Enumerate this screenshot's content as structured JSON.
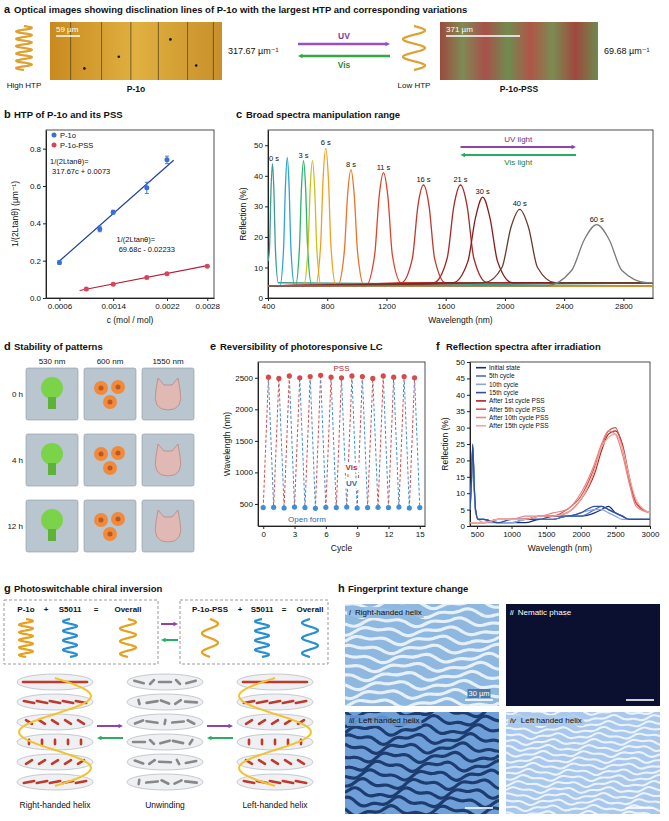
{
  "chart_data": [
    {
      "type": "scatter",
      "letter": "b",
      "title": "HTP of P-1o and its PSS",
      "x_label": "c (mol / mol)",
      "y_label": "1/(2Ltanθ) (µm⁻¹)",
      "xlim": [
        0.0004,
        0.0029
      ],
      "xticks": [
        0.0006,
        0.0014,
        0.0022,
        0.0028
      ],
      "ylim": [
        0,
        0.9
      ],
      "yticks": [
        {
          "value": 0,
          "label": "0.0"
        },
        0.2,
        0.4,
        0.6,
        0.8
      ],
      "legend": "upper left",
      "series": [
        {
          "name": "P-1o",
          "color": "#3a6fd8",
          "marker": "circle",
          "x": [
            0.0006,
            0.0012,
            0.0014,
            0.0019,
            0.0022
          ],
          "values": [
            0.19,
            0.37,
            0.46,
            0.59,
            0.74
          ],
          "errors": [
            0.01,
            0.015,
            0.01,
            0.03,
            0.02
          ]
        },
        {
          "name": "P-1o-PSS",
          "color": "#d8455a",
          "marker": "circle",
          "x": [
            0.001,
            0.0014,
            0.0019,
            0.0022,
            0.0028
          ],
          "values": [
            0.048,
            0.074,
            0.11,
            0.13,
            0.17
          ],
          "errors": [
            0.005,
            0.005,
            0.006,
            0.005,
            0.006
          ]
        }
      ],
      "fits": [
        {
          "label": "1/(2Ltanθ)= 317.67c + 0.0073",
          "color": "#1f3f9f",
          "x": [
            0.0006,
            0.0023
          ],
          "values": [
            0.198,
            0.738
          ]
        },
        {
          "label": "1/(2Ltanθ)= 69.68c - 0.02233",
          "color": "#b0223a",
          "x": [
            0.0009,
            0.0028
          ],
          "values": [
            0.04,
            0.173
          ]
        }
      ]
    },
    {
      "type": "line",
      "letter": "c",
      "title": "Broad spectra manipulation range",
      "x_label": "Wavelength (nm)",
      "y_label": "Reflection (%)",
      "xlim": [
        400,
        3000
      ],
      "xticks": [
        400,
        800,
        1200,
        1600,
        2000,
        2400,
        2800
      ],
      "ylim": [
        0,
        55
      ],
      "yticks": [
        0,
        10,
        20,
        30,
        40,
        50
      ],
      "annotations": [
        "UV light",
        "Vis light"
      ],
      "series": [
        {
          "name": "0 s",
          "color": "#3a9e8f",
          "x": [
            400,
            410,
            420,
            430,
            440,
            450,
            470,
            3000
          ],
          "values": [
            12,
            16,
            35,
            44,
            35,
            16,
            5,
            4
          ]
        },
        {
          "name": null,
          "color": "#2fa4d4",
          "x": [
            400,
            480,
            505,
            518,
            530,
            542,
            555,
            580,
            3000
          ],
          "values": [
            4,
            4,
            16,
            37,
            46,
            37,
            16,
            4,
            4
          ]
        },
        {
          "name": "3 s",
          "color": "#2db36b",
          "x": [
            400,
            585,
            612,
            626,
            640,
            654,
            668,
            696,
            3000
          ],
          "values": [
            4,
            4,
            16,
            36,
            45,
            36,
            16,
            4,
            4
          ]
        },
        {
          "name": null,
          "color": "#c9c21a",
          "x": [
            400,
            640,
            670,
            685,
            700,
            715,
            730,
            760,
            3000
          ],
          "values": [
            4,
            4,
            16,
            36,
            45,
            36,
            16,
            4,
            4
          ]
        },
        {
          "name": "6 s",
          "color": "#f0a020",
          "x": [
            400,
            720,
            755,
            772,
            790,
            808,
            825,
            860,
            3000
          ],
          "values": [
            4,
            4,
            17,
            39,
            49,
            39,
            17,
            4,
            4
          ]
        },
        {
          "name": "8 s",
          "color": "#e8742a",
          "x": [
            400,
            870,
            915,
            938,
            960,
            982,
            1005,
            1050,
            3000
          ],
          "values": [
            4,
            4,
            15,
            34,
            42,
            34,
            15,
            4,
            4
          ]
        },
        {
          "name": "11 s",
          "color": "#d9452b",
          "x": [
            400,
            1060,
            1120,
            1150,
            1180,
            1210,
            1240,
            1300,
            3000
          ],
          "values": [
            4,
            4,
            14,
            33,
            41,
            33,
            14,
            5,
            5
          ]
        },
        {
          "name": "16 s",
          "color": "#c0392b",
          "x": [
            400,
            1300,
            1375,
            1412,
            1450,
            1488,
            1525,
            1600,
            3000
          ],
          "values": [
            4,
            5,
            13,
            30,
            37,
            30,
            13,
            5,
            5
          ]
        },
        {
          "name": "21 s",
          "color": "#a52a2a",
          "x": [
            400,
            1520,
            1610,
            1655,
            1700,
            1745,
            1790,
            1880,
            3000
          ],
          "values": [
            4,
            5,
            13,
            30,
            37,
            30,
            13,
            5,
            5
          ]
        },
        {
          "name": "30 s",
          "color": "#8b1a1a",
          "x": [
            400,
            1650,
            1750,
            1800,
            1850,
            1900,
            1950,
            2050,
            3000
          ],
          "values": [
            4,
            5,
            12,
            26,
            33,
            26,
            12,
            5,
            5
          ]
        },
        {
          "name": "40 s",
          "color": "#6b3a2a",
          "x": [
            400,
            1860,
            1980,
            2040,
            2100,
            2160,
            2220,
            2340,
            3000
          ],
          "values": [
            4,
            5,
            10,
            23,
            29,
            23,
            10,
            5,
            5
          ]
        },
        {
          "name": "60 s",
          "color": "#7a7a7a",
          "x": [
            400,
            2280,
            2450,
            2535,
            2620,
            2705,
            2790,
            2960,
            3000
          ],
          "values": [
            4,
            4,
            9,
            19,
            24,
            19,
            9,
            5,
            5
          ]
        }
      ]
    },
    {
      "type": "line",
      "letter": "e",
      "title": "Reversibility of photoresponsive LC",
      "x_label": "Cycle",
      "y_label": "Wavelength (nm)",
      "xlim": [
        -0.5,
        15.5
      ],
      "xticks": [
        0,
        3,
        6,
        9,
        12,
        15
      ],
      "ylim": [
        150,
        2750
      ],
      "yticks": [
        500,
        1000,
        1500,
        2000,
        2500
      ],
      "annotations": [
        "UV",
        "Vis"
      ],
      "series": [
        {
          "name": "Open form",
          "color": "#3d8fd6",
          "marker": "circle",
          "line_style": "dashed",
          "x": [
            0,
            1,
            2,
            3,
            4,
            5,
            6,
            7,
            8,
            9,
            10,
            11,
            12,
            13,
            14,
            15
          ],
          "values": [
            440,
            445,
            435,
            450,
            440,
            430,
            445,
            440,
            450,
            435,
            440,
            445,
            440,
            450,
            435,
            440
          ]
        },
        {
          "name": "PSS",
          "color": "#d84a4a",
          "marker": "circle",
          "line_style": "dashed",
          "x": [
            0.5,
            1.5,
            2.5,
            3.5,
            4.5,
            5.5,
            6.5,
            7.5,
            8.5,
            9.5,
            10.5,
            11.5,
            12.5,
            13.5,
            14.5
          ],
          "values": [
            2510,
            2490,
            2530,
            2500,
            2520,
            2540,
            2510,
            2500,
            2530,
            2520,
            2490,
            2530,
            2510,
            2520,
            2500
          ]
        }
      ]
    },
    {
      "type": "line",
      "letter": "f",
      "title": "Reflection spectra after irradiation",
      "x_label": "Wavelength (nm)",
      "y_label": "Reflection (%)",
      "xlim": [
        400,
        3000
      ],
      "xticks": [
        500,
        1000,
        1500,
        2000,
        2500,
        3000
      ],
      "ylim": [
        0,
        50
      ],
      "yticks": [
        0,
        5,
        10,
        15,
        20,
        25,
        30,
        35,
        40,
        45,
        50
      ],
      "legend": "upper left",
      "x": [
        400,
        420,
        440,
        460,
        480,
        520,
        600,
        800,
        1000,
        1200,
        1400,
        1600,
        1800,
        2000,
        2200,
        2300,
        2400,
        2500,
        2600,
        2700,
        2800,
        3000
      ],
      "series": [
        {
          "name": "Initial state",
          "color": "#1a2f7a",
          "values": [
            6,
            14,
            25,
            13,
            5,
            2,
            2,
            1,
            1,
            1,
            2,
            2,
            3,
            3,
            4,
            5,
            6,
            4,
            3,
            2,
            2,
            2
          ]
        },
        {
          "name": "5th cycle",
          "color": "#4a6fc7",
          "values": [
            5,
            13,
            24,
            12,
            5,
            2,
            2,
            1,
            1,
            2,
            2,
            2,
            3,
            3,
            5,
            6,
            5,
            4,
            3,
            2,
            2,
            2
          ]
        },
        {
          "name": "10th cycle",
          "color": "#8aa6d9",
          "values": [
            5,
            12,
            23,
            12,
            4,
            2,
            1,
            1,
            1,
            2,
            2,
            3,
            3,
            4,
            5,
            5,
            4,
            3,
            2,
            2,
            2,
            2
          ]
        },
        {
          "name": "15th cycle",
          "color": "#2e4fa8",
          "values": [
            5,
            13,
            24,
            13,
            5,
            2,
            2,
            1,
            2,
            2,
            2,
            3,
            3,
            4,
            6,
            6,
            5,
            4,
            3,
            2,
            2,
            2
          ]
        },
        {
          "name": "After 1st cycle PSS",
          "color": "#b22222",
          "values": [
            1,
            1,
            1,
            1,
            1,
            1,
            1,
            2,
            2,
            2,
            3,
            3,
            4,
            8,
            16,
            23,
            28,
            29,
            25,
            15,
            7,
            4
          ]
        },
        {
          "name": "After 5th cycle PSS",
          "color": "#d9534f",
          "values": [
            1,
            1,
            1,
            1,
            1,
            1,
            1,
            2,
            2,
            2,
            3,
            3,
            5,
            9,
            18,
            24,
            29,
            30,
            24,
            14,
            7,
            4
          ]
        },
        {
          "name": "After 10th cycle PSS",
          "color": "#e8837f",
          "values": [
            1,
            1,
            1,
            1,
            1,
            1,
            1,
            2,
            2,
            3,
            3,
            4,
            5,
            10,
            19,
            25,
            29,
            28,
            22,
            13,
            6,
            4
          ]
        },
        {
          "name": "After 15th cycle PSS",
          "color": "#f0a8a0",
          "values": [
            1,
            1,
            1,
            1,
            1,
            1,
            1,
            2,
            2,
            2,
            3,
            3,
            4,
            8,
            17,
            24,
            27,
            28,
            24,
            15,
            8,
            4
          ]
        }
      ]
    }
  ],
  "panel_a": {
    "letter": "a",
    "title": "Optical images showing disclination lines of P-1o with the largest HTP and corresponding variations",
    "left": {
      "helix": "High HTP",
      "image": "P-1o",
      "scale_bar": "59 µm",
      "htp": "317.67 µm⁻¹"
    },
    "right": {
      "helix": "Low HTP",
      "image": "P-1o-PSS",
      "scale_bar": "371 µm",
      "htp": "69.68 µm⁻¹"
    },
    "arrows": [
      "UV",
      "Vis"
    ]
  },
  "panel_d": {
    "letter": "d",
    "title": "Stability of patterns",
    "columns": [
      "530 nm",
      "600 nm",
      "1550 nm"
    ],
    "rows": [
      "0 h",
      "4 h",
      "12 h"
    ]
  },
  "panel_g": {
    "letter": "g",
    "title": "Photoswitchable chiral inversion",
    "left_equation": [
      "P-1o",
      "+",
      "S5011",
      "=",
      "Overall"
    ],
    "right_equation": [
      "P-1o-PSS",
      "+",
      "S5011",
      "=",
      "Overall"
    ],
    "states": [
      "Right-handed helix",
      "Unwinding",
      "Left-handed helix"
    ]
  },
  "panel_h": {
    "letter": "h",
    "title": "Fingerprint texture change",
    "images": [
      {
        "numeral": "i",
        "label": "Right-handed helix"
      },
      {
        "numeral": "ii",
        "label": "Nematic phase"
      },
      {
        "numeral": "iii",
        "label": "Left handed helix"
      },
      {
        "numeral": "iv",
        "label": "Left handed helix"
      }
    ],
    "scale_bar": "30 µm"
  }
}
